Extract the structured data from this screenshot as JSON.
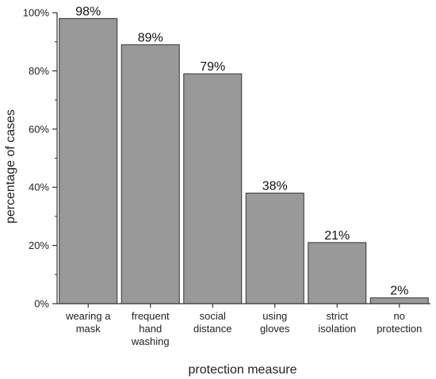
{
  "chart_data": {
    "type": "bar",
    "categories": [
      [
        "wearing a",
        "mask"
      ],
      [
        "frequent",
        "hand",
        "washing"
      ],
      [
        "social",
        "distance"
      ],
      [
        "using",
        "gloves"
      ],
      [
        "strict",
        "isolation"
      ],
      [
        "no",
        "protection"
      ]
    ],
    "values": [
      98,
      89,
      79,
      38,
      21,
      2
    ],
    "data_labels": [
      "98%",
      "89%",
      "79%",
      "38%",
      "21%",
      "2%"
    ],
    "title": "",
    "xlabel": "protection measure",
    "ylabel": "percentage of cases",
    "ylim": [
      0,
      100
    ],
    "yticks": [
      0,
      20,
      40,
      60,
      80,
      100
    ],
    "ytick_labels": [
      "0%",
      "20%",
      "40%",
      "60%",
      "80%",
      "100%"
    ],
    "grid": false,
    "legend": "none",
    "bar_color": "#999999",
    "bar_edge_color": "#333333"
  }
}
